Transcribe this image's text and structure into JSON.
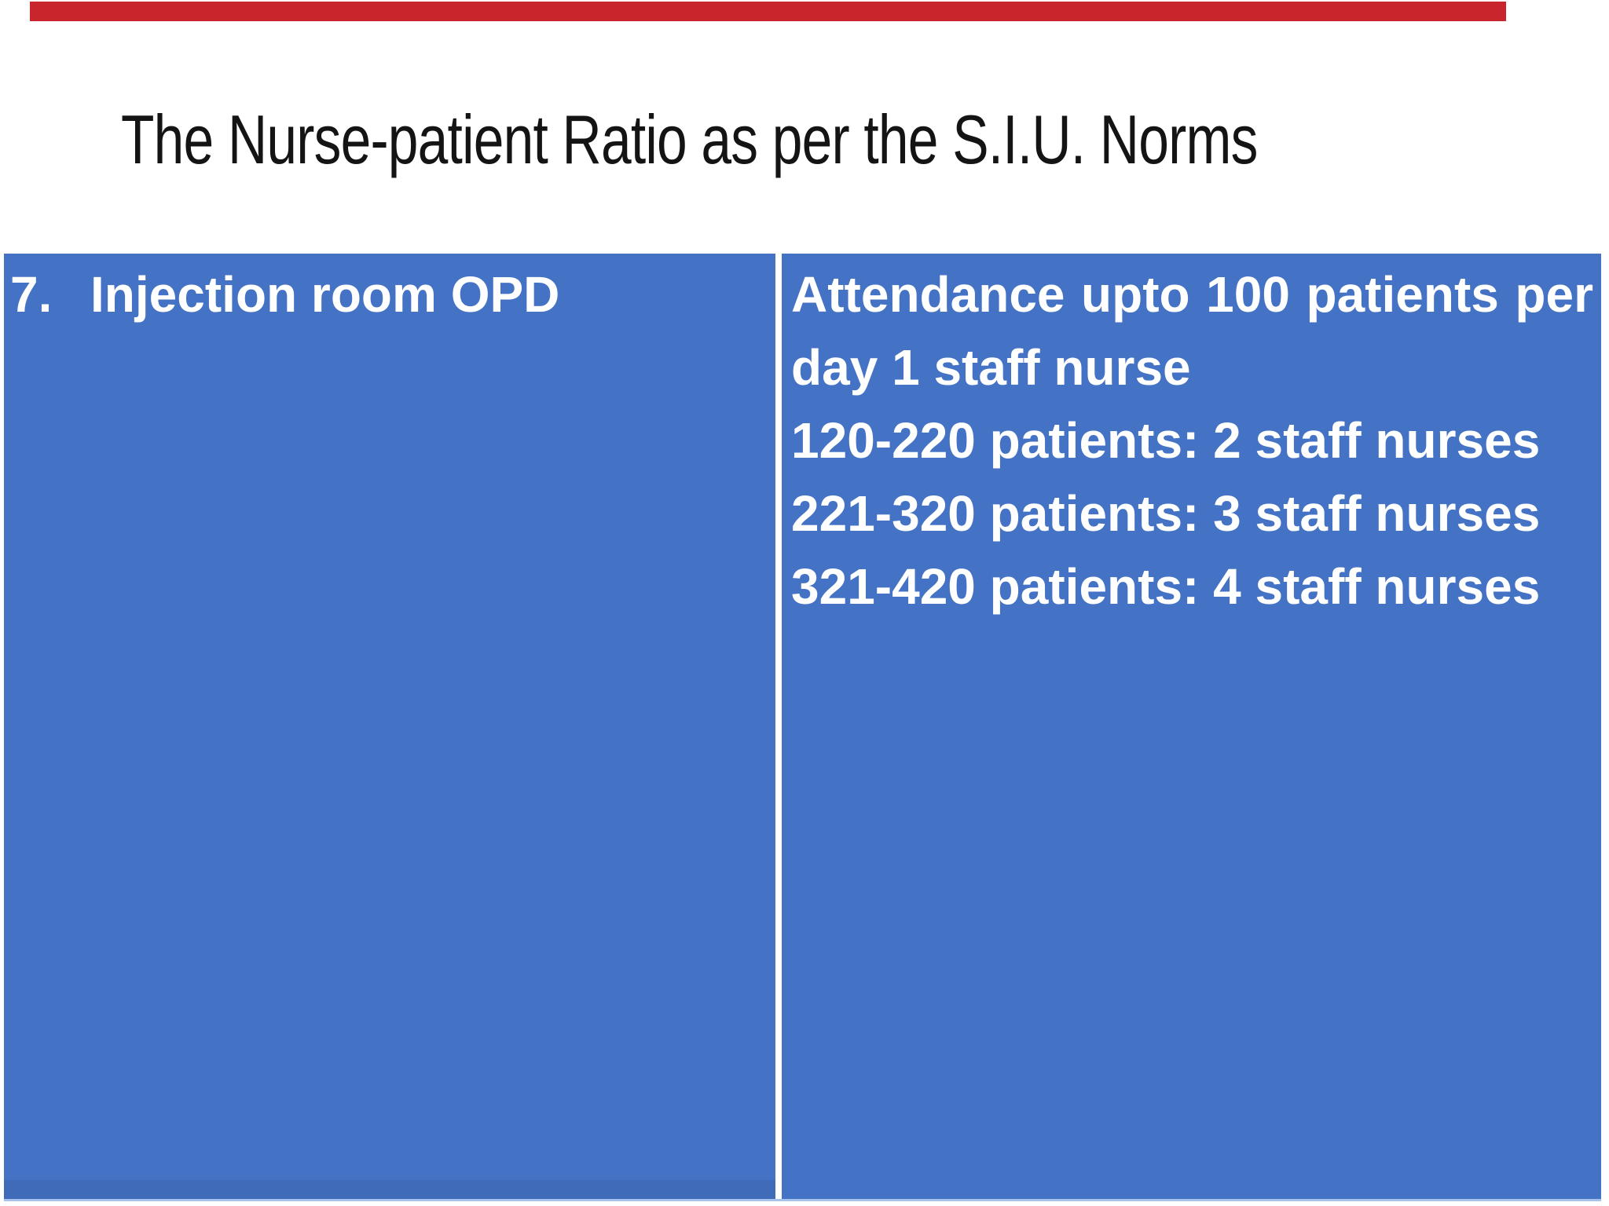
{
  "slide": {
    "title": "The Nurse-patient Ratio as per the S.I.U. Norms",
    "decor": {
      "top_bar_color": "#c9252d"
    },
    "table": {
      "cell_bg": "#4472c4",
      "row_number": "7.",
      "room_type": "Injection room OPD",
      "ratio_lines": [
        "Attendance upto 100 patients per day 1 staff nurse",
        "120-220 patients: 2 staff nurses",
        "221-320 patients: 3 staff nurses",
        "321-420 patients: 4 staff nurses"
      ]
    }
  }
}
